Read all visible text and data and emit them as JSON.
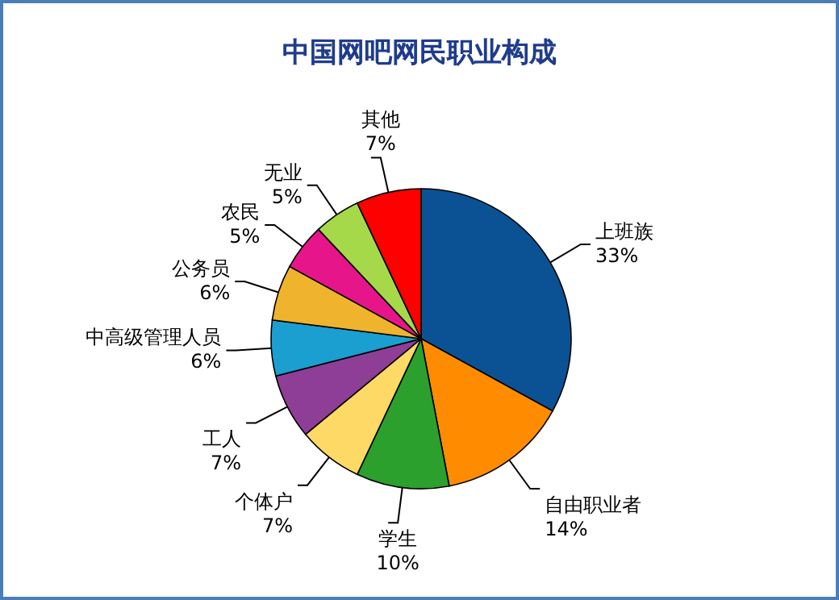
{
  "chart_data": {
    "type": "pie",
    "title": "中国网吧网民职业构成",
    "categories": [
      "上班族",
      "自由职业者",
      "学生",
      "个体户",
      "工人",
      "中高级管理人员",
      "公务员",
      "农民",
      "无业",
      "其他"
    ],
    "values": [
      33,
      14,
      10,
      7,
      7,
      6,
      6,
      5,
      5,
      7
    ],
    "value_labels": [
      "33%",
      "14%",
      "10%",
      "7%",
      "7%",
      "6%",
      "6%",
      "5%",
      "5%",
      "7%"
    ],
    "colors": [
      "#0b5294",
      "#ff8c00",
      "#2ca02c",
      "#ffd966",
      "#8e3e96",
      "#1a9fd0",
      "#f0b32d",
      "#e6168a",
      "#a6d94a",
      "#ff0000"
    ]
  }
}
